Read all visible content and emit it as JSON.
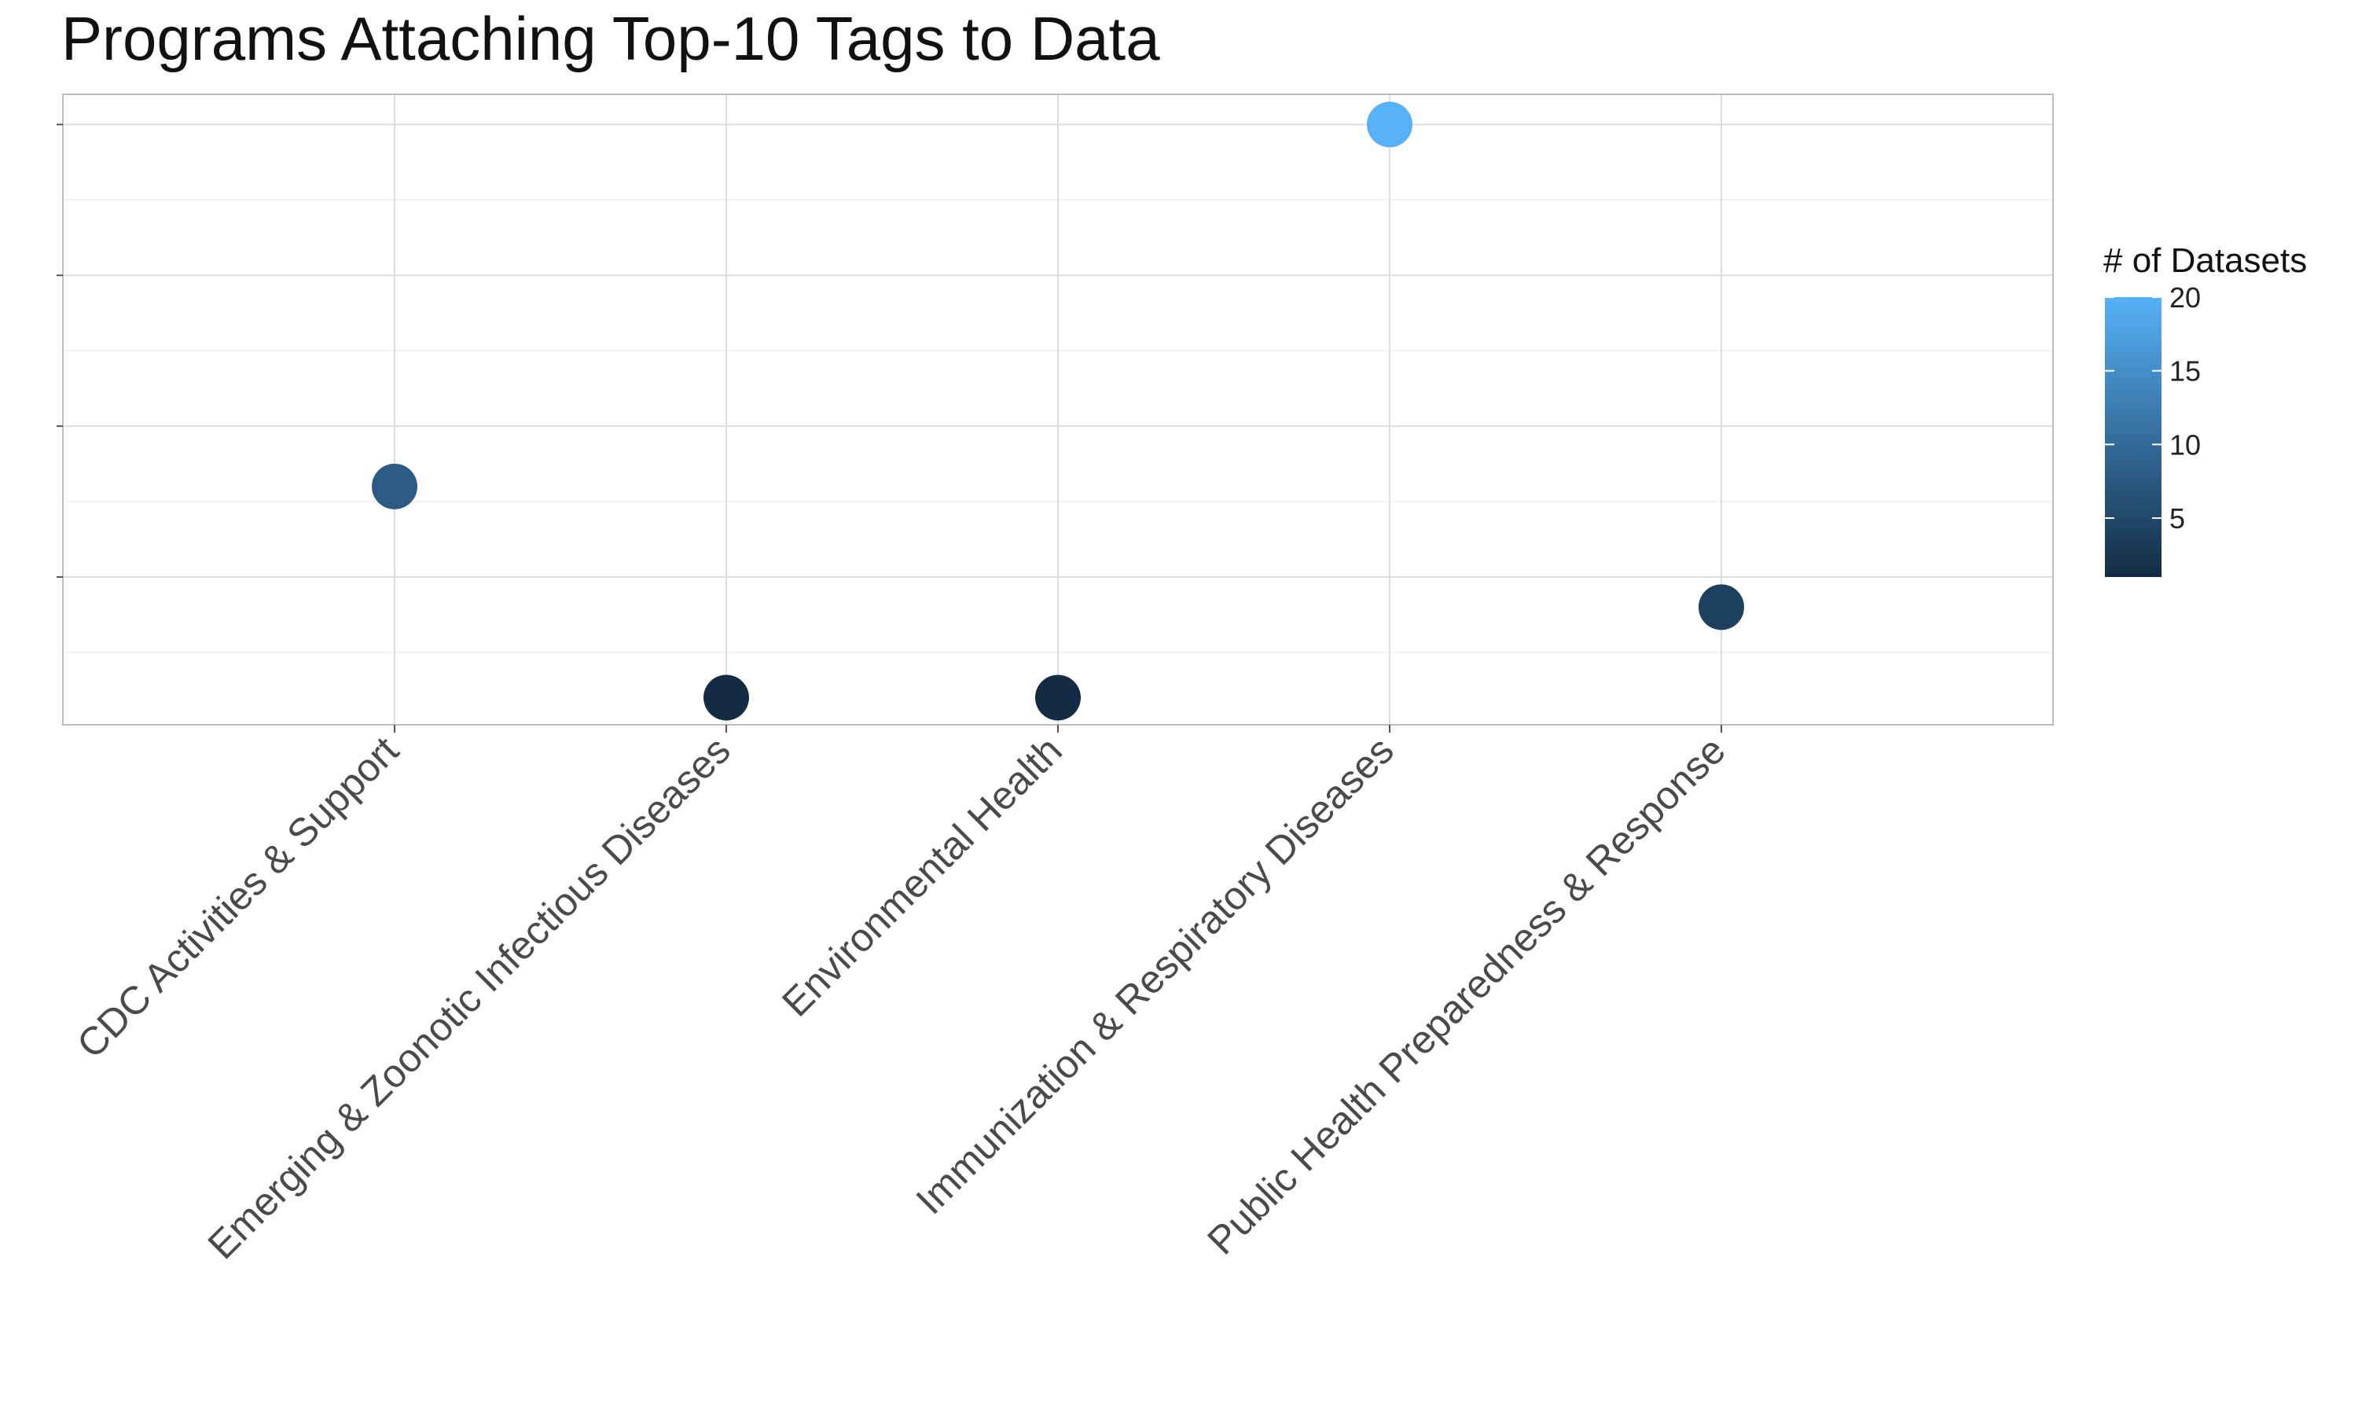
{
  "chart_data": {
    "type": "scatter",
    "title": "Programs Attaching Top-10 Tags to Data",
    "xlabel": "",
    "ylabel": "",
    "categories": [
      "CDC Activities & Support",
      "Emerging & Zoonotic Infectious Diseases",
      "Environmental Health",
      "Immunization & Respiratory Diseases",
      "Public Health Preparedness & Response"
    ],
    "values": [
      8,
      1,
      1,
      20,
      4
    ],
    "color_values": [
      8,
      1,
      1,
      20,
      4
    ],
    "ylim": [
      0.1,
      21
    ],
    "y_tick_labels_shown": false,
    "grid": true,
    "legend": {
      "title": "# of Datasets",
      "ticks": [
        5,
        10,
        15,
        20
      ],
      "range": [
        1,
        20
      ],
      "position": "right",
      "color_low": "#132b43",
      "color_high": "#56b1f7"
    }
  }
}
